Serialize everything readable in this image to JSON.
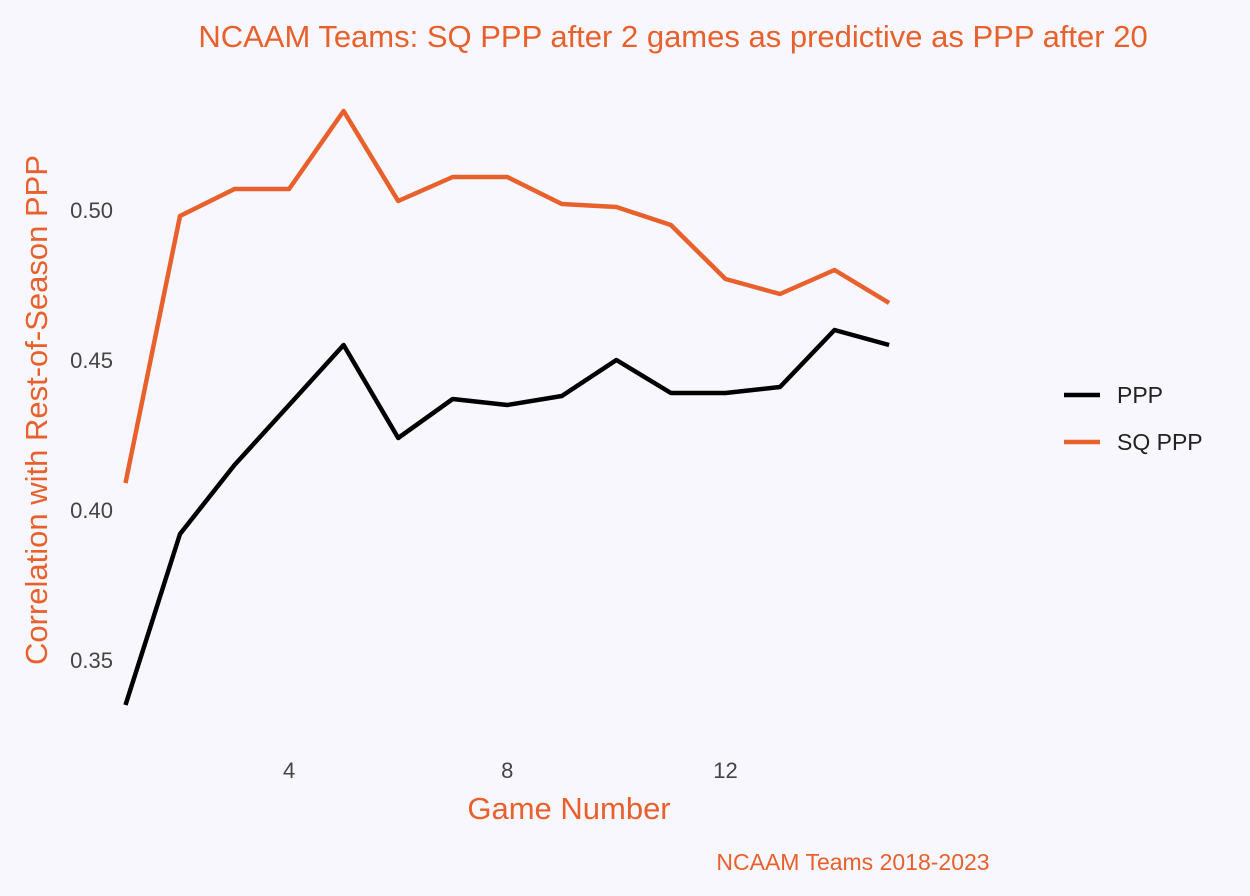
{
  "chart_data": {
    "type": "line",
    "title": "NCAAM Teams: SQ PPP after 2 games as predictive as PPP after 20",
    "xlabel": "Game Number",
    "ylabel": "Correlation with Rest-of-Season PPP",
    "caption": "NCAAM Teams 2018-2023",
    "x": [
      1,
      2,
      3,
      4,
      5,
      6,
      7,
      8,
      9,
      10,
      11,
      12,
      13,
      14,
      15
    ],
    "xlim": [
      0.35,
      17.4
    ],
    "ylim": [
      0.32,
      0.55
    ],
    "x_ticks": [
      4,
      8,
      12
    ],
    "y_ticks": [
      0.35,
      0.4,
      0.45,
      0.5
    ],
    "y_tick_labels": [
      "0.35",
      "0.40",
      "0.45",
      "0.50"
    ],
    "grid": false,
    "legend_position": "right",
    "series": [
      {
        "name": "PPP",
        "color": "#000000",
        "values": [
          0.335,
          0.392,
          0.415,
          0.435,
          0.455,
          0.424,
          0.437,
          0.435,
          0.438,
          0.45,
          0.439,
          0.439,
          0.441,
          0.46,
          0.455
        ]
      },
      {
        "name": "SQ PPP",
        "color": "#e8602c",
        "values": [
          0.409,
          0.498,
          0.507,
          0.507,
          0.533,
          0.503,
          0.511,
          0.511,
          0.502,
          0.501,
          0.495,
          0.477,
          0.472,
          0.48,
          0.469
        ]
      }
    ]
  }
}
